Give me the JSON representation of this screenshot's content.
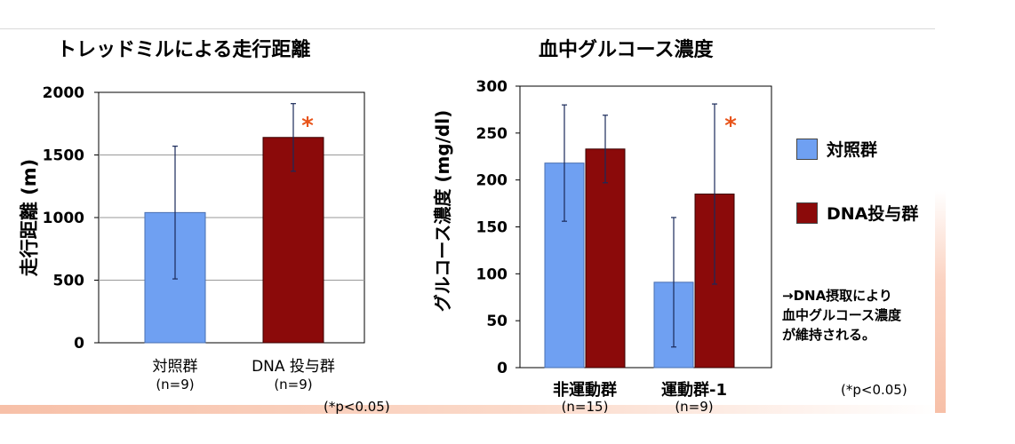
{
  "chart_data": [
    {
      "type": "bar",
      "title": "トレッドミルによる走行距離",
      "ylabel": "走行距離 (m)",
      "ylim": [
        0,
        2000
      ],
      "yticks": [
        0,
        500,
        1000,
        1500,
        2000
      ],
      "grid": true,
      "categories": [
        "対照群",
        "DNA 投与群"
      ],
      "category_sublabels": [
        "(n=9)",
        "(n=9)"
      ],
      "series": [
        {
          "values": [
            1040,
            1640
          ],
          "error": [
            530,
            270
          ],
          "colors": [
            "#6fa0f2",
            "#8b0a0a"
          ]
        }
      ],
      "significance": [
        {
          "category_index": 1,
          "mark": "*",
          "color": "#e8541a"
        }
      ],
      "note": "(*p<0.05)"
    },
    {
      "type": "bar",
      "title": "血中グルコース濃度",
      "ylabel": "グルコース濃度 (mg/dl)",
      "ylim": [
        0,
        300
      ],
      "yticks": [
        0,
        50,
        100,
        150,
        200,
        250,
        300
      ],
      "grid": false,
      "categories": [
        "非運動群",
        "運動群-1"
      ],
      "category_sublabels": [
        "(n=15)",
        "(n=9)"
      ],
      "series": [
        {
          "name": "対照群",
          "color": "#6fa0f2",
          "values": [
            218,
            91
          ],
          "error": [
            62,
            69
          ]
        },
        {
          "name": "DNA投与群",
          "color": "#8b0a0a",
          "values": [
            233,
            185
          ],
          "error": [
            36,
            96
          ]
        }
      ],
      "significance": [
        {
          "category_index": 1,
          "series_index": 1,
          "mark": "*",
          "color": "#e8541a"
        }
      ],
      "legend_position": "right",
      "note": "(*p<0.05)"
    }
  ],
  "legend": [
    {
      "label": "対照群",
      "color": "#6fa0f2"
    },
    {
      "label": "DNA投与群",
      "color": "#8b0a0a"
    }
  ],
  "conclusion": [
    "→DNA摂取により",
    "血中グルコース濃度",
    "が維持される。"
  ]
}
